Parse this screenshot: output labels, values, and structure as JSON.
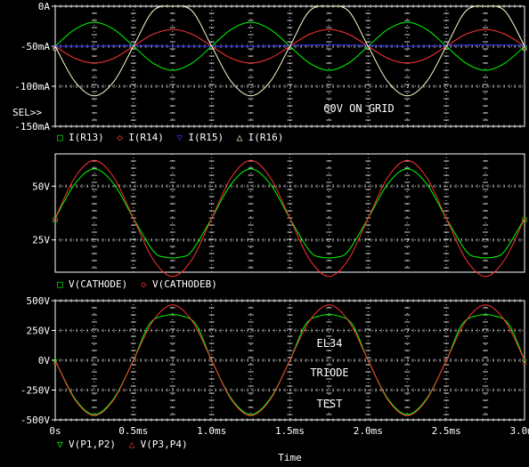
{
  "chart_data": [
    {
      "type": "line",
      "id": "currents",
      "ylim": [
        -150,
        0
      ],
      "xlim": [
        0,
        3.0
      ],
      "yticks": [
        0,
        -50,
        -100,
        -150
      ],
      "ytick_labels": [
        "0A",
        "-50mA",
        "-100mA",
        "-150mA"
      ],
      "cursor_label": "SEL>>",
      "annotations": [
        "60V ON GRID"
      ],
      "legend_placement": "bottom-left",
      "series": [
        {
          "name": "I(R13)",
          "color": "#00ff00",
          "marker": "□",
          "x": [
            0.0,
            0.125,
            0.25,
            0.375,
            0.5,
            0.625,
            0.75,
            0.875,
            1.0,
            1.125,
            1.25,
            1.375,
            1.5,
            1.625,
            1.75,
            1.875,
            2.0,
            2.125,
            2.25,
            2.375,
            2.5,
            2.625,
            2.75,
            2.875,
            3.0
          ],
          "values": [
            -50,
            -29,
            -20,
            -29,
            -50,
            -71,
            -80,
            -71,
            -50,
            -29,
            -20,
            -29,
            -50,
            -71,
            -80,
            -71,
            -50,
            -29,
            -20,
            -29,
            -50,
            -71,
            -80,
            -71,
            -50
          ]
        },
        {
          "name": "I(R14)",
          "color": "#ff3333",
          "marker": "◇",
          "x": [
            0.0,
            0.125,
            0.25,
            0.375,
            0.5,
            0.625,
            0.75,
            0.875,
            1.0,
            1.125,
            1.25,
            1.375,
            1.5,
            1.625,
            1.75,
            1.875,
            2.0,
            2.125,
            2.25,
            2.375,
            2.5,
            2.625,
            2.75,
            2.875,
            3.0
          ],
          "values": [
            -50,
            -65,
            -71,
            -65,
            -50,
            -35,
            -29,
            -35,
            -50,
            -65,
            -71,
            -65,
            -50,
            -35,
            -29,
            -35,
            -50,
            -65,
            -71,
            -65,
            -50,
            -35,
            -29,
            -35,
            -50
          ]
        },
        {
          "name": "I(R15)",
          "color": "#3333ff",
          "marker": "▽",
          "x": [
            0.0,
            0.25,
            0.5,
            0.75,
            1.0,
            1.25,
            1.5,
            1.75,
            2.0,
            2.25,
            2.5,
            2.75,
            3.0
          ],
          "values": [
            -50,
            -50,
            -49,
            -50,
            -50,
            -50,
            -49,
            -48,
            -49,
            -50,
            -49,
            -48,
            -49
          ]
        },
        {
          "name": "I(R16)",
          "color": "#ffffcc",
          "marker": "△",
          "x": [
            0.0,
            0.125,
            0.25,
            0.375,
            0.5,
            0.625,
            0.75,
            0.875,
            1.0,
            1.125,
            1.25,
            1.375,
            1.5,
            1.625,
            1.75,
            1.875,
            2.0,
            2.125,
            2.25,
            2.375,
            2.5,
            2.625,
            2.75,
            2.875,
            3.0
          ],
          "values": [
            -50,
            -94,
            -112,
            -94,
            -50,
            -6,
            0,
            -6,
            -50,
            -94,
            -112,
            -94,
            -50,
            -6,
            0,
            -6,
            -50,
            -94,
            -112,
            -94,
            -50,
            -6,
            0,
            -6,
            -50
          ]
        }
      ]
    },
    {
      "type": "line",
      "id": "cathode",
      "ylim": [
        10,
        65
      ],
      "xlim": [
        0,
        3.0
      ],
      "yticks": [
        25,
        50
      ],
      "ytick_labels": [
        "25V",
        "50V"
      ],
      "legend_placement": "bottom-left",
      "series": [
        {
          "name": "V(CATHODE)",
          "color": "#00ff00",
          "marker": "□",
          "x": [
            0.0,
            0.125,
            0.25,
            0.375,
            0.5,
            0.625,
            0.7,
            0.8,
            0.875,
            1.0,
            1.125,
            1.25,
            1.375,
            1.5,
            1.625,
            1.7,
            1.8,
            1.875,
            2.0,
            2.125,
            2.25,
            2.375,
            2.5,
            2.625,
            2.7,
            2.8,
            2.875,
            3.0
          ],
          "values": [
            35,
            51,
            58,
            51,
            35,
            20,
            17,
            17,
            20,
            35,
            51,
            58,
            51,
            35,
            20,
            17,
            17,
            20,
            35,
            51,
            58,
            51,
            35,
            20,
            17,
            17,
            20,
            35
          ]
        },
        {
          "name": "V(CATHODEB)",
          "color": "#ff3333",
          "marker": "◇",
          "x": [
            0.0,
            0.125,
            0.25,
            0.375,
            0.5,
            0.625,
            0.75,
            0.875,
            1.0,
            1.125,
            1.25,
            1.375,
            1.5,
            1.625,
            1.75,
            1.875,
            2.0,
            2.125,
            2.25,
            2.375,
            2.5,
            2.625,
            2.75,
            2.875,
            3.0
          ],
          "values": [
            35,
            54,
            62,
            54,
            35,
            16,
            8,
            16,
            35,
            54,
            62,
            54,
            35,
            16,
            8,
            16,
            35,
            54,
            62,
            54,
            35,
            16,
            8,
            16,
            35
          ]
        }
      ]
    },
    {
      "type": "line",
      "id": "plates",
      "ylim": [
        -500,
        500
      ],
      "xlim": [
        0,
        3.0
      ],
      "yticks": [
        500,
        250,
        0,
        -250,
        -500
      ],
      "ytick_labels": [
        "500V",
        "250V",
        "0V",
        "-250V",
        "-500V"
      ],
      "xticks": [
        0,
        0.5,
        1.0,
        1.5,
        2.0,
        2.5,
        3.0
      ],
      "xtick_labels": [
        "0s",
        "0.5ms",
        "1.0ms",
        "1.5ms",
        "2.0ms",
        "2.5ms",
        "3.0ms"
      ],
      "xlabel": "Time",
      "annotations": [
        "EL34",
        "TRIODE",
        "TEST"
      ],
      "legend_placement": "bottom-left",
      "series": [
        {
          "name": "V(P1,P2)",
          "color": "#00ff00",
          "marker": "▽",
          "x": [
            0.0,
            0.125,
            0.25,
            0.375,
            0.5,
            0.6,
            0.7,
            0.8,
            0.9,
            1.0,
            1.125,
            1.25,
            1.375,
            1.5,
            1.6,
            1.7,
            1.8,
            1.9,
            2.0,
            2.125,
            2.25,
            2.375,
            2.5,
            2.6,
            2.7,
            2.8,
            2.9,
            3.0
          ],
          "values": [
            0,
            -320,
            -455,
            -320,
            0,
            300,
            375,
            375,
            300,
            0,
            -320,
            -455,
            -320,
            0,
            300,
            375,
            375,
            300,
            0,
            -320,
            -455,
            -320,
            0,
            300,
            375,
            375,
            300,
            0
          ]
        },
        {
          "name": "V(P3,P4)",
          "color": "#ff3333",
          "marker": "△",
          "x": [
            0.0,
            0.125,
            0.25,
            0.375,
            0.5,
            0.625,
            0.75,
            0.875,
            1.0,
            1.125,
            1.25,
            1.375,
            1.5,
            1.625,
            1.75,
            1.875,
            2.0,
            2.125,
            2.25,
            2.375,
            2.5,
            2.625,
            2.75,
            2.875,
            3.0
          ],
          "values": [
            0,
            -330,
            -465,
            -330,
            0,
            330,
            465,
            330,
            0,
            -330,
            -465,
            -330,
            0,
            330,
            465,
            330,
            0,
            -330,
            -465,
            -330,
            0,
            330,
            465,
            330,
            0
          ]
        }
      ]
    }
  ]
}
